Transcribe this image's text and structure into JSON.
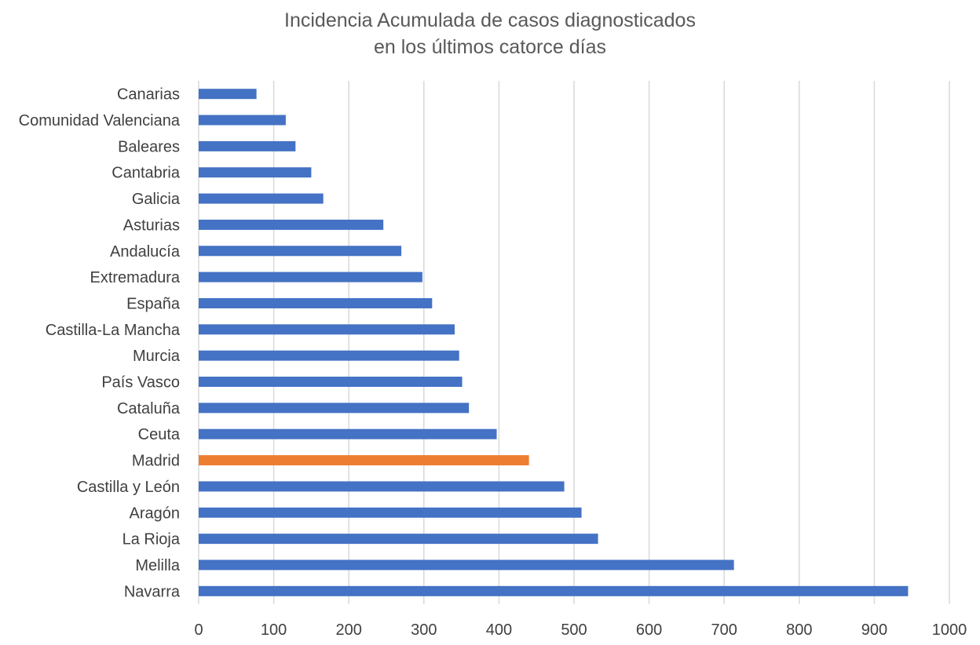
{
  "chart_data": {
    "type": "bar",
    "orientation": "horizontal",
    "title_lines": [
      "Incidencia Acumulada de casos diagnosticados",
      "en los últimos catorce días"
    ],
    "categories": [
      "Canarias",
      "Comunidad Valenciana",
      "Baleares",
      "Cantabria",
      "Galicia",
      "Asturias",
      "Andalucía",
      "Extremadura",
      "España",
      "Castilla-La Mancha",
      "Murcia",
      "País Vasco",
      "Cataluña",
      "Ceuta",
      "Madrid",
      "Castilla y León",
      "Aragón",
      "La Rioja",
      "Melilla",
      "Navarra"
    ],
    "values": [
      77,
      116,
      129,
      150,
      166,
      246,
      270,
      298,
      311,
      341,
      347,
      351,
      360,
      397,
      440,
      487,
      510,
      532,
      713,
      945
    ],
    "highlight_category": "Madrid",
    "xlim": [
      0,
      1000
    ],
    "xticks": [
      0,
      100,
      200,
      300,
      400,
      500,
      600,
      700,
      800,
      900,
      1000
    ],
    "grid": "vertical",
    "legend": "none",
    "colors": {
      "bar": "#4472C4",
      "highlight": "#ED7D31",
      "grid": "#D9D9D9",
      "text": "#404040"
    }
  }
}
